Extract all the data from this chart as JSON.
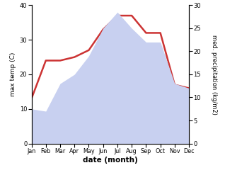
{
  "months": [
    "Jan",
    "Feb",
    "Mar",
    "Apr",
    "May",
    "Jun",
    "Jul",
    "Aug",
    "Sep",
    "Oct",
    "Nov",
    "Dec"
  ],
  "max_temp": [
    13,
    24,
    24,
    25,
    27,
    33,
    37,
    37,
    32,
    32,
    17,
    16
  ],
  "precipitation": [
    7.5,
    7.0,
    13,
    15,
    19,
    25,
    28.5,
    25,
    22,
    22,
    13,
    12
  ],
  "temp_color": "#cc3333",
  "precip_fill_color": "#c8d0f0",
  "temp_ylim": [
    0,
    40
  ],
  "precip_ylim": [
    0,
    30
  ],
  "xlabel": "date (month)",
  "ylabel_left": "max temp (C)",
  "ylabel_right": "med. precipitation (kg/m2)",
  "temp_linewidth": 1.8,
  "background_color": "#ffffff",
  "left_yticks": [
    0,
    10,
    20,
    30,
    40
  ],
  "right_yticks": [
    0,
    5,
    10,
    15,
    20,
    25,
    30
  ]
}
